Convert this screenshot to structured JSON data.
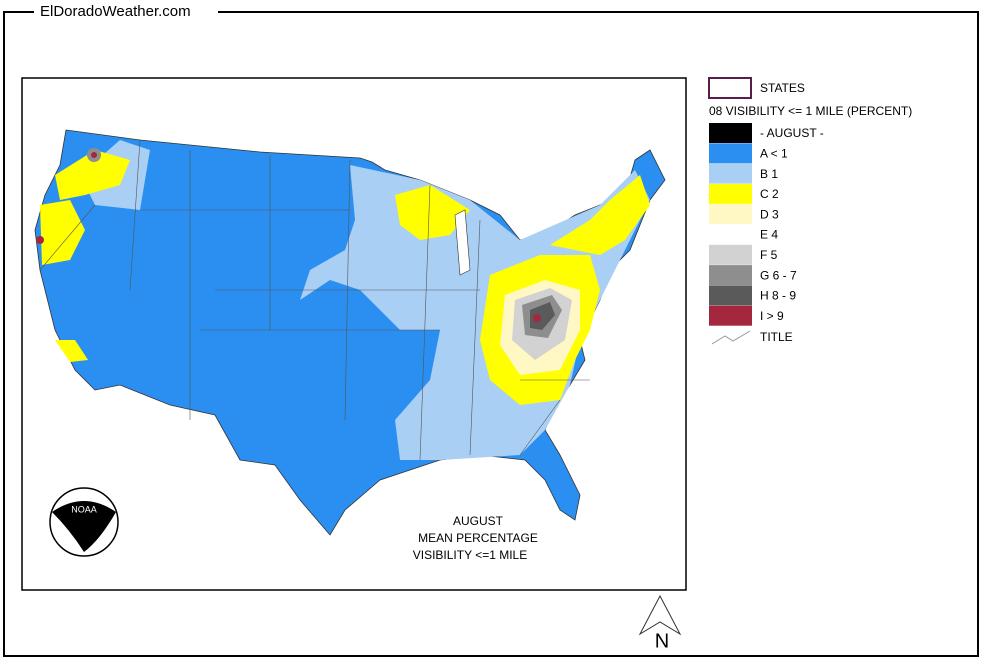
{
  "header": {
    "title": "ElDoradoWeather.com"
  },
  "legend": {
    "states_label": "STATES",
    "layer_title": "08 VISIBILITY <= 1 MILE (PERCENT)",
    "items": [
      {
        "label": "- AUGUST -",
        "color": "#000000"
      },
      {
        "label": "A < 1",
        "color": "#2a8ff0"
      },
      {
        "label": "B 1",
        "color": "#a9cff5"
      },
      {
        "label": "C 2",
        "color": "#ffff00"
      },
      {
        "label": "D 3",
        "color": "#fff7c4"
      },
      {
        "label": "E 4",
        "color": "#ffffff"
      },
      {
        "label": "F 5",
        "color": "#d2d2d2"
      },
      {
        "label": "G 6 - 7",
        "color": "#8e8e8e"
      },
      {
        "label": "H 8 - 9",
        "color": "#5a5a5a"
      },
      {
        "label": "I > 9",
        "color": "#a3283e"
      }
    ],
    "title_label": "TITLE"
  },
  "map": {
    "caption": [
      "AUGUST",
      "MEAN PERCENTAGE",
      "VISIBILITY <=1 MILE"
    ],
    "logo_text": "NOAA"
  },
  "north_arrow": "N"
}
